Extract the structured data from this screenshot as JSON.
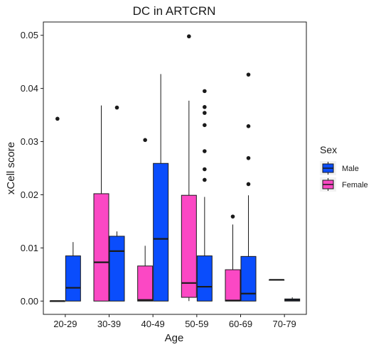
{
  "chart_data": {
    "type": "boxplot",
    "title": "DC in ARTCRN",
    "xlabel": "Age",
    "ylabel": "xCell score",
    "categories": [
      "20-29",
      "30-39",
      "40-49",
      "50-59",
      "60-69",
      "70-79"
    ],
    "ylim": [
      -0.0025,
      0.0525
    ],
    "yticks": [
      0.0,
      0.01,
      0.02,
      0.03,
      0.04,
      0.05
    ],
    "ytick_labels": [
      "0.00",
      "0.01",
      "0.02",
      "0.03",
      "0.04",
      "0.05"
    ],
    "legend": {
      "title": "Sex",
      "placement": "right",
      "entries": [
        {
          "label": "Male",
          "color": "#0a4dfc"
        },
        {
          "label": "Female",
          "color": "#fb48c4"
        }
      ]
    },
    "series": [
      {
        "name": "Female",
        "color": "#fb48c4",
        "boxes": [
          {
            "category": "20-29",
            "min": 0.0,
            "q1": 0.0,
            "median": 0.0,
            "q3": 0.0,
            "max": 0.0,
            "outliers": [
              0.0343
            ]
          },
          {
            "category": "30-39",
            "min": 0.0,
            "q1": 0.0,
            "median": 0.0073,
            "q3": 0.0202,
            "max": 0.0368,
            "outliers": []
          },
          {
            "category": "40-49",
            "min": 0.0,
            "q1": 0.0,
            "median": 0.0002,
            "q3": 0.0066,
            "max": 0.0104,
            "outliers": [
              0.0303
            ]
          },
          {
            "category": "50-59",
            "min": 0.0,
            "q1": 0.0007,
            "median": 0.0034,
            "q3": 0.0199,
            "max": 0.0377,
            "outliers": [
              0.0498
            ]
          },
          {
            "category": "60-69",
            "min": 0.0,
            "q1": 0.0,
            "median": 0.0001,
            "q3": 0.0059,
            "max": 0.0144,
            "outliers": [
              0.0159
            ]
          },
          {
            "category": "70-79",
            "min": 0.004,
            "q1": 0.004,
            "median": 0.004,
            "q3": 0.004,
            "max": 0.004,
            "outliers": []
          }
        ]
      },
      {
        "name": "Male",
        "color": "#0a4dfc",
        "boxes": [
          {
            "category": "20-29",
            "min": 0.0,
            "q1": 0.0,
            "median": 0.0025,
            "q3": 0.0085,
            "max": 0.0111,
            "outliers": []
          },
          {
            "category": "30-39",
            "min": 0.0,
            "q1": 0.0,
            "median": 0.0094,
            "q3": 0.0122,
            "max": 0.0131,
            "outliers": [
              0.0364
            ]
          },
          {
            "category": "40-49",
            "min": 0.0,
            "q1": 0.0,
            "median": 0.0117,
            "q3": 0.0259,
            "max": 0.0427,
            "outliers": []
          },
          {
            "category": "50-59",
            "min": 0.0,
            "q1": 0.0,
            "median": 0.0027,
            "q3": 0.0085,
            "max": 0.0196,
            "outliers": [
              0.0228,
              0.0248,
              0.0282,
              0.0331,
              0.0354,
              0.0365,
              0.0395
            ]
          },
          {
            "category": "60-69",
            "min": 0.0,
            "q1": 0.0,
            "median": 0.0014,
            "q3": 0.0084,
            "max": 0.0199,
            "outliers": [
              0.022,
              0.0269,
              0.0329,
              0.0426
            ]
          },
          {
            "category": "70-79",
            "min": 0.0,
            "q1": 0.0,
            "median": 0.0002,
            "q3": 0.0004,
            "max": 0.0007,
            "outliers": []
          }
        ]
      }
    ]
  }
}
